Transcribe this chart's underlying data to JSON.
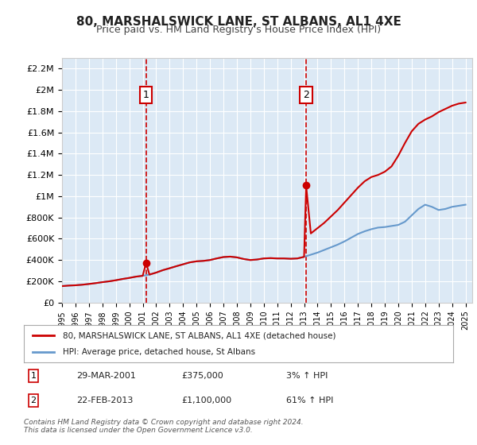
{
  "title": "80, MARSHALSWICK LANE, ST ALBANS, AL1 4XE",
  "subtitle": "Price paid vs. HM Land Registry's House Price Index (HPI)",
  "legend_line1": "80, MARSHALSWICK LANE, ST ALBANS, AL1 4XE (detached house)",
  "legend_line2": "HPI: Average price, detached house, St Albans",
  "sale1_label": "1",
  "sale1_date": "29-MAR-2001",
  "sale1_price": "£375,000",
  "sale1_hpi": "3% ↑ HPI",
  "sale2_label": "2",
  "sale2_date": "22-FEB-2013",
  "sale2_price": "£1,100,000",
  "sale2_hpi": "61% ↑ HPI",
  "footer": "Contains HM Land Registry data © Crown copyright and database right 2024.\nThis data is licensed under the Open Government Licence v3.0.",
  "background_color": "#ffffff",
  "plot_bg_color": "#dce9f5",
  "grid_color": "#ffffff",
  "red_color": "#cc0000",
  "blue_color": "#6699cc",
  "sale_marker_color": "#cc0000",
  "dashed_line_color": "#cc0000",
  "ylim": [
    0,
    2300000
  ],
  "yticks": [
    0,
    200000,
    400000,
    600000,
    800000,
    1000000,
    1200000,
    1400000,
    1600000,
    1800000,
    2000000,
    2200000
  ],
  "ytick_labels": [
    "£0",
    "£200K",
    "£400K",
    "£600K",
    "£800K",
    "£1M",
    "£1.2M",
    "£1.4M",
    "£1.6M",
    "£1.8M",
    "£2M",
    "£2.2M"
  ],
  "sale1_year": 2001.25,
  "sale1_value": 375000,
  "sale2_year": 2013.15,
  "sale2_value": 1100000,
  "hpi_years": [
    1995,
    1995.5,
    1996,
    1996.5,
    1997,
    1997.5,
    1998,
    1998.5,
    1999,
    1999.5,
    2000,
    2000.5,
    2001,
    2001.5,
    2002,
    2002.5,
    2003,
    2003.5,
    2004,
    2004.5,
    2005,
    2005.5,
    2006,
    2006.5,
    2007,
    2007.5,
    2008,
    2008.5,
    2009,
    2009.5,
    2010,
    2010.5,
    2011,
    2011.5,
    2012,
    2012.5,
    2013,
    2013.5,
    2014,
    2014.5,
    2015,
    2015.5,
    2016,
    2016.5,
    2017,
    2017.5,
    2018,
    2018.5,
    2019,
    2019.5,
    2020,
    2020.5,
    2021,
    2021.5,
    2022,
    2022.5,
    2023,
    2023.5,
    2024,
    2024.5,
    2025
  ],
  "hpi_values": [
    155000,
    160000,
    163000,
    168000,
    175000,
    183000,
    192000,
    200000,
    210000,
    222000,
    232000,
    244000,
    252000,
    263000,
    282000,
    305000,
    323000,
    342000,
    360000,
    378000,
    388000,
    392000,
    400000,
    415000,
    428000,
    432000,
    425000,
    410000,
    400000,
    405000,
    415000,
    418000,
    415000,
    415000,
    412000,
    415000,
    430000,
    450000,
    470000,
    495000,
    520000,
    545000,
    575000,
    610000,
    645000,
    670000,
    690000,
    705000,
    710000,
    720000,
    730000,
    760000,
    820000,
    880000,
    920000,
    900000,
    870000,
    880000,
    900000,
    910000,
    920000
  ],
  "red_years": [
    1995,
    1995.5,
    1996,
    1996.5,
    1997,
    1997.5,
    1998,
    1998.5,
    1999,
    1999.5,
    2000,
    2000.5,
    2001,
    2001.25,
    2001.5,
    2002,
    2002.5,
    2003,
    2003.5,
    2004,
    2004.5,
    2005,
    2005.5,
    2006,
    2006.5,
    2007,
    2007.5,
    2008,
    2008.5,
    2009,
    2009.5,
    2010,
    2010.5,
    2011,
    2011.5,
    2012,
    2012.5,
    2013,
    2013.15,
    2013.5,
    2014,
    2014.5,
    2015,
    2015.5,
    2016,
    2016.5,
    2017,
    2017.5,
    2018,
    2018.5,
    2019,
    2019.5,
    2020,
    2020.5,
    2021,
    2021.5,
    2022,
    2022.5,
    2023,
    2023.5,
    2024,
    2024.5,
    2025
  ],
  "red_values": [
    155000,
    160000,
    163000,
    168000,
    175000,
    183000,
    192000,
    200000,
    210000,
    222000,
    232000,
    244000,
    252000,
    375000,
    263000,
    282000,
    305000,
    323000,
    342000,
    360000,
    378000,
    388000,
    392000,
    400000,
    415000,
    428000,
    432000,
    425000,
    410000,
    400000,
    405000,
    415000,
    418000,
    415000,
    415000,
    412000,
    415000,
    430000,
    1100000,
    650000,
    700000,
    750000,
    810000,
    870000,
    940000,
    1010000,
    1080000,
    1140000,
    1180000,
    1200000,
    1230000,
    1280000,
    1380000,
    1500000,
    1610000,
    1680000,
    1720000,
    1750000,
    1790000,
    1820000,
    1850000,
    1870000,
    1880000
  ]
}
